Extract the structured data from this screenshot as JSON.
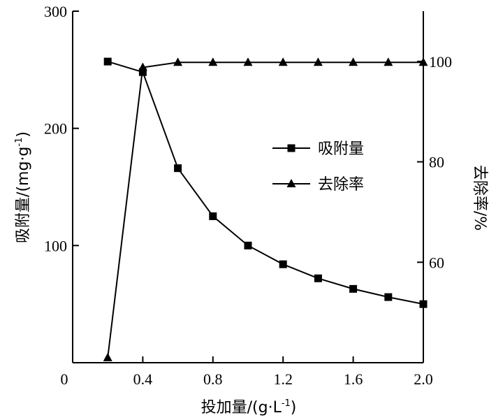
{
  "chart_data": {
    "type": "line",
    "x": [
      0.2,
      0.4,
      0.6,
      0.8,
      1.0,
      1.2,
      1.4,
      1.6,
      1.8,
      2.0
    ],
    "xlabel": "投加量/(g·L",
    "xlabel_sup": "-1",
    "xlabel_end": ")",
    "ylabel_left": "吸附量/(mg·g",
    "ylabel_left_sup": "-1",
    "ylabel_left_end": ")",
    "ylabel_right": "去除率/%",
    "xlim": [
      0,
      2.0
    ],
    "ylim_left": [
      0,
      300
    ],
    "ylim_right": [
      40,
      110
    ],
    "x_ticks": [
      "0",
      "0.4",
      "0.8",
      "1.2",
      "1.6",
      "2.0"
    ],
    "y_left_ticks": [
      "100",
      "200",
      "300"
    ],
    "y_right_ticks": [
      "60",
      "80",
      "100"
    ],
    "legend_position": "center-right",
    "series": [
      {
        "name": "吸附量",
        "axis": "left",
        "marker": "square",
        "values": [
          257,
          248,
          166,
          125,
          100,
          84,
          72,
          63,
          56,
          50
        ]
      },
      {
        "name": "去除率",
        "axis": "right",
        "marker": "triangle",
        "values": [
          41,
          98.8,
          99.8,
          99.8,
          99.8,
          99.8,
          99.8,
          99.8,
          99.8,
          99.8
        ]
      }
    ],
    "colors": {
      "line": "#000000",
      "background": "#ffffff"
    }
  }
}
